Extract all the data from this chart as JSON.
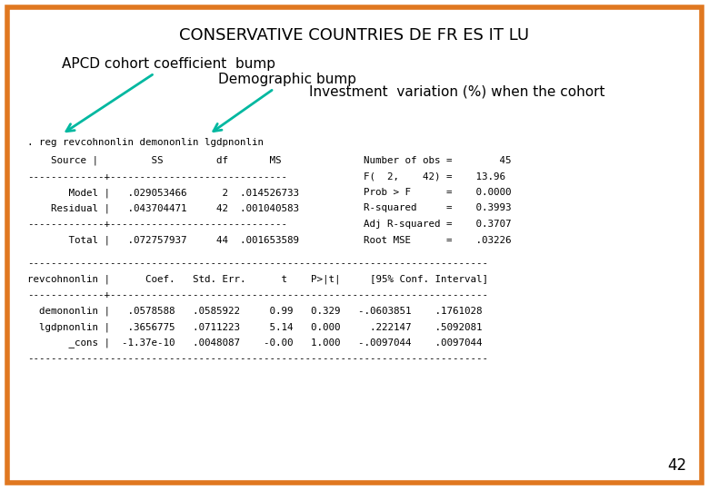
{
  "title": "CONSERVATIVE COUNTRIES DE FR ES IT LU",
  "bg_color": "#ffffff",
  "border_color": "#e07820",
  "annotation1": "APCD cohort coefficient  bump",
  "annotation2": "Demographic bump",
  "annotation3": "Investment  variation (%) when the cohort",
  "cmd_line": ". reg revcohnonlin demononlin lgdpnonlin",
  "anova_header": "    Source |         SS         df       MS",
  "anova_sep1": "-------------+------------------------------",
  "anova_model": "       Model |   .029053466      2  .014526733",
  "anova_resid": "    Residual |   .043704471     42  .001040583",
  "anova_sep2": "-------------+------------------------------",
  "anova_total": "       Total |   .072757937     44  .001653589",
  "stats_right": [
    "Number of obs =        45",
    "F(  2,    42) =    13.96",
    "Prob > F      =    0.0000",
    "R-squared     =    0.3993",
    "Adj R-squared =    0.3707",
    "Root MSE      =    .03226"
  ],
  "reg_sep1": "------------------------------------------------------------------------------",
  "reg_header": "revcohnonlin |      Coef.   Std. Err.      t    P>|t|     [95% Conf. Interval]",
  "reg_sep2": "-------------+----------------------------------------------------------------",
  "reg_rows": [
    "  demononlin |   .0578588   .0585922     0.99   0.329   -.0603851    .1761028",
    "  lgdpnonlin |   .3656775   .0711223     5.14   0.000     .222147    .5092081",
    "       _cons |  -1.37e-10   .0048087    -0.00   1.000   -.0097044    .0097044"
  ],
  "reg_sep3": "------------------------------------------------------------------------------",
  "page_num": "42",
  "arrow_color": "#00b8a0",
  "title_fontsize": 13,
  "mono_fontsize": 7.8,
  "anno_fontsize": 11
}
